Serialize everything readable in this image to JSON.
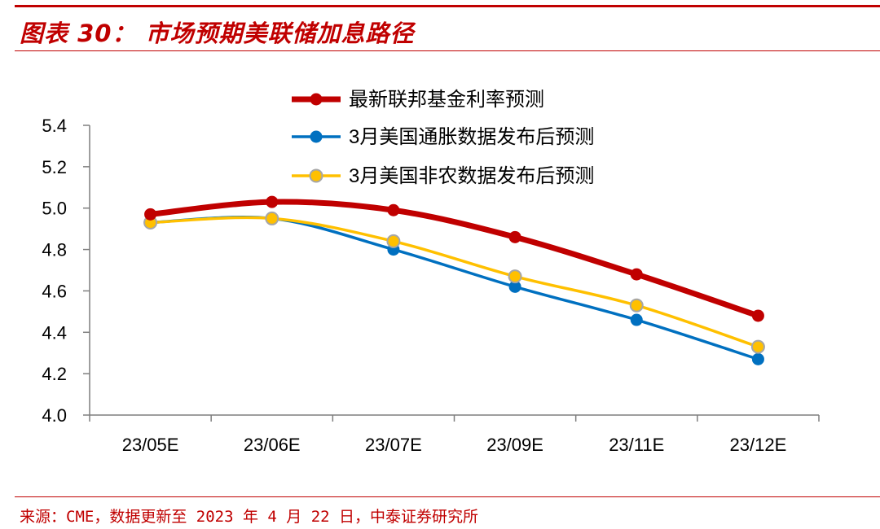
{
  "header": {
    "title": "图表 30： 市场预期美联储加息路径"
  },
  "footer": {
    "source": "来源：CME，数据更新至 2023 年 4 月 22 日，中泰证券研究所"
  },
  "chart_data": {
    "type": "line",
    "categories": [
      "23/05E",
      "23/06E",
      "23/07E",
      "23/09E",
      "23/11E",
      "23/12E"
    ],
    "series": [
      {
        "name": "最新联邦基金利率预测",
        "color": "#c00000",
        "values": [
          4.97,
          5.03,
          4.99,
          4.86,
          4.68,
          4.48
        ]
      },
      {
        "name": "3月美国通胀数据发布后预测",
        "color": "#0070c0",
        "values": [
          4.93,
          4.95,
          4.8,
          4.62,
          4.46,
          4.27
        ]
      },
      {
        "name": "3月美国非农数据发布后预测",
        "color": "#ffc000",
        "values": [
          4.93,
          4.95,
          4.84,
          4.67,
          4.53,
          4.33
        ]
      }
    ],
    "yticks": [
      "4.0",
      "4.2",
      "4.4",
      "4.6",
      "4.8",
      "5.0",
      "5.2",
      "5.4"
    ],
    "ylim": [
      4.0,
      5.4
    ],
    "legend_position": "top",
    "grid": false
  }
}
